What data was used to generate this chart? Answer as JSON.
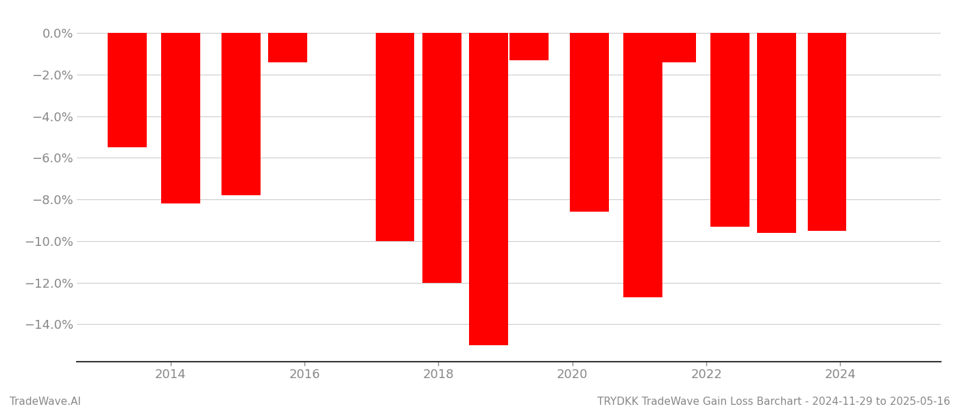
{
  "x_positions": [
    2013.35,
    2014.15,
    2015.05,
    2015.75,
    2017.35,
    2018.05,
    2018.75,
    2019.35,
    2020.25,
    2021.05,
    2021.55,
    2022.35,
    2023.05,
    2023.8
  ],
  "values": [
    -5.5,
    -8.2,
    -7.8,
    -1.4,
    -10.0,
    -12.0,
    -15.0,
    -1.3,
    -8.6,
    -12.7,
    -1.4,
    -9.3,
    -9.6,
    -9.5
  ],
  "bar_color": "#ff0000",
  "bar_width": 0.58,
  "ylim": [
    -15.8,
    0.8
  ],
  "yticks": [
    0.0,
    -2.0,
    -4.0,
    -6.0,
    -8.0,
    -10.0,
    -12.0,
    -14.0
  ],
  "ytick_labels": [
    "0.0%",
    "−2.0%",
    "−4.0%",
    "−6.0%",
    "−8.0%",
    "−10.0%",
    "−12.0%",
    "−14.0%"
  ],
  "xlim": [
    2012.6,
    2025.5
  ],
  "xticks": [
    2014,
    2016,
    2018,
    2020,
    2022,
    2024
  ],
  "xtick_labels": [
    "2014",
    "2016",
    "2018",
    "2020",
    "2022",
    "2024"
  ],
  "grid_color": "#cccccc",
  "tick_color": "#888888",
  "background_color": "#ffffff",
  "footer_left": "TradeWave.AI",
  "footer_right": "TRYDKK TradeWave Gain Loss Barchart - 2024-11-29 to 2025-05-16",
  "footer_fontsize": 11,
  "footer_color": "#888888"
}
